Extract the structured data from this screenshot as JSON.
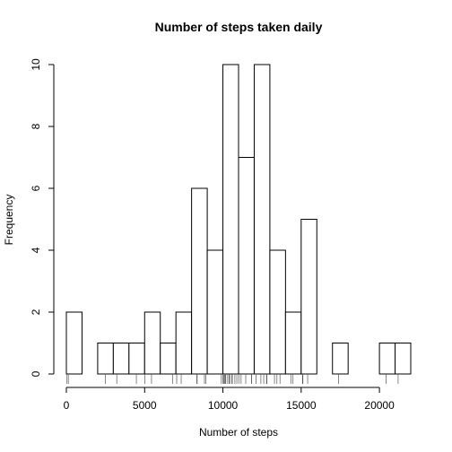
{
  "chart_data": {
    "type": "bar",
    "title": "Number of steps taken daily",
    "xlabel": "Number of steps",
    "ylabel": "Frequency",
    "bin_edges": [
      0,
      1000,
      2000,
      3000,
      4000,
      5000,
      6000,
      7000,
      8000,
      9000,
      10000,
      11000,
      12000,
      13000,
      14000,
      15000,
      16000,
      17000,
      18000,
      19000,
      20000,
      21000,
      22000
    ],
    "values": [
      2,
      0,
      1,
      1,
      1,
      2,
      1,
      2,
      6,
      4,
      10,
      7,
      10,
      4,
      2,
      5,
      0,
      1,
      0,
      0,
      1,
      1
    ],
    "xlim": [
      0,
      22000
    ],
    "ylim": [
      0,
      10
    ],
    "x_ticks": [
      0,
      5000,
      10000,
      15000,
      20000
    ],
    "x_tick_labels": [
      "0",
      "5000",
      "10000",
      "15000",
      "20000"
    ],
    "y_ticks": [
      0,
      2,
      4,
      6,
      8,
      10
    ],
    "y_tick_labels": [
      "0",
      "2",
      "4",
      "6",
      "8",
      "10"
    ],
    "rug": [
      41,
      126,
      2492,
      3219,
      4472,
      5018,
      5441,
      6778,
      7047,
      7336,
      8334,
      8355,
      8821,
      8918,
      9900,
      10000,
      10056,
      10119,
      10139,
      10183,
      10304,
      10395,
      10439,
      10571,
      10600,
      10765,
      10890,
      11015,
      11162,
      11458,
      11829,
      11834,
      12116,
      12426,
      12608,
      12787,
      12811,
      13294,
      13452,
      13646,
      14339,
      14478,
      15084,
      15098,
      15110,
      15414,
      17382,
      20427,
      21194
    ],
    "grid": false,
    "legend": "none"
  }
}
